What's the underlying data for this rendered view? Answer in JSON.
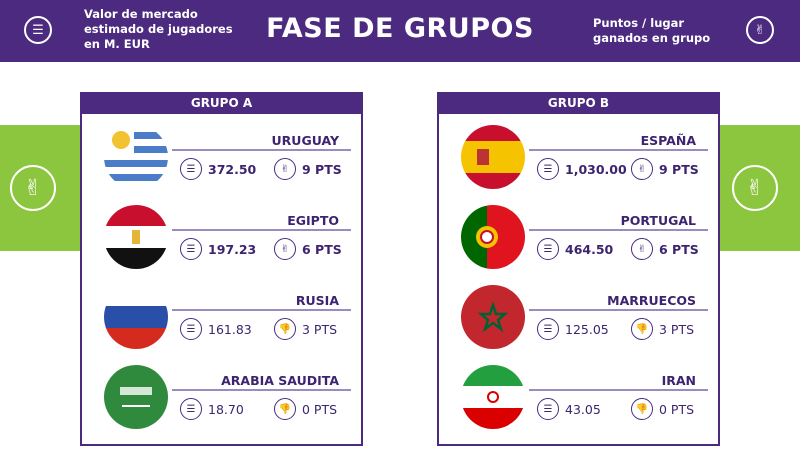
{
  "header": {
    "title": "FASE DE GRUPOS",
    "left_label": "Valor de mercado estimado de jugadores en M. EUR",
    "right_label": "Puntos / lugar ganados en grupo",
    "left_icon": "coins-icon",
    "right_icon": "victory-hand-icon"
  },
  "colors": {
    "purple": "#4b2a80",
    "green": "#8cc63f"
  },
  "groups": [
    {
      "title": "GRUPO A",
      "teams": [
        {
          "name": "URUGUAY",
          "value": "372.50",
          "points": "9 PTS",
          "qualified": true
        },
        {
          "name": "EGIPTO",
          "value": "197.23",
          "points": "6 PTS",
          "qualified": true
        },
        {
          "name": "RUSIA",
          "value": "161.83",
          "points": "3 PTS",
          "qualified": false
        },
        {
          "name": "ARABIA SAUDITA",
          "value": "18.70",
          "points": "0 PTS",
          "qualified": false
        }
      ]
    },
    {
      "title": "GRUPO B",
      "teams": [
        {
          "name": "ESPAÑA",
          "value": "1,030.00",
          "points": "9 PTS",
          "qualified": true
        },
        {
          "name": "PORTUGAL",
          "value": "464.50",
          "points": "6 PTS",
          "qualified": true
        },
        {
          "name": "MARRUECOS",
          "value": "125.05",
          "points": "3 PTS",
          "qualified": false
        },
        {
          "name": "IRAN",
          "value": "43.05",
          "points": "0 PTS",
          "qualified": false
        }
      ]
    }
  ]
}
